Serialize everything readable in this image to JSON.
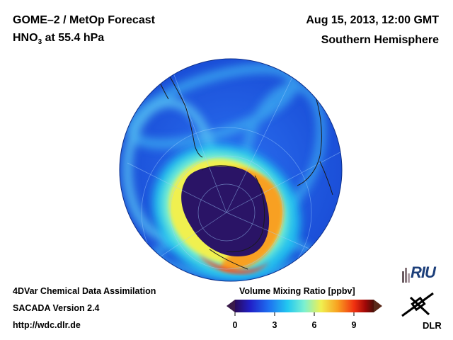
{
  "header": {
    "product": "GOME–2 / MetOp Forecast",
    "species": "HNO",
    "species_sub": "3",
    "level": " at 55.4 hPa",
    "datetime": "Aug 15, 2013, 12:00 GMT",
    "region": "Southern Hemisphere"
  },
  "footer": {
    "line1": "4DVar Chemical Data Assimilation",
    "line2": "SACADA Version 2.4",
    "line3": "http://wdc.dlr.de"
  },
  "colorbar": {
    "title": "Volume Mixing Ratio [ppbv]",
    "ticks": [
      "0",
      "3",
      "6",
      "9"
    ],
    "range": [
      0,
      10.5
    ],
    "colors": [
      "#2a0a5a",
      "#2020c8",
      "#1e6ef0",
      "#22c8f0",
      "#7cf0d0",
      "#f0f050",
      "#f8a020",
      "#f03010",
      "#a00808",
      "#4a1008"
    ]
  },
  "logos": {
    "riu": "RIU",
    "dlr": "DLR"
  },
  "map": {
    "projection": "orthographic, south polar",
    "field": "HNO3 volume mixing ratio",
    "ocean_background_color": "#1f5fe6",
    "depleted_core_color": "#2a1466",
    "collar_colors": [
      "#22c8f0",
      "#f0f050",
      "#f8a020",
      "#f04a28"
    ]
  }
}
